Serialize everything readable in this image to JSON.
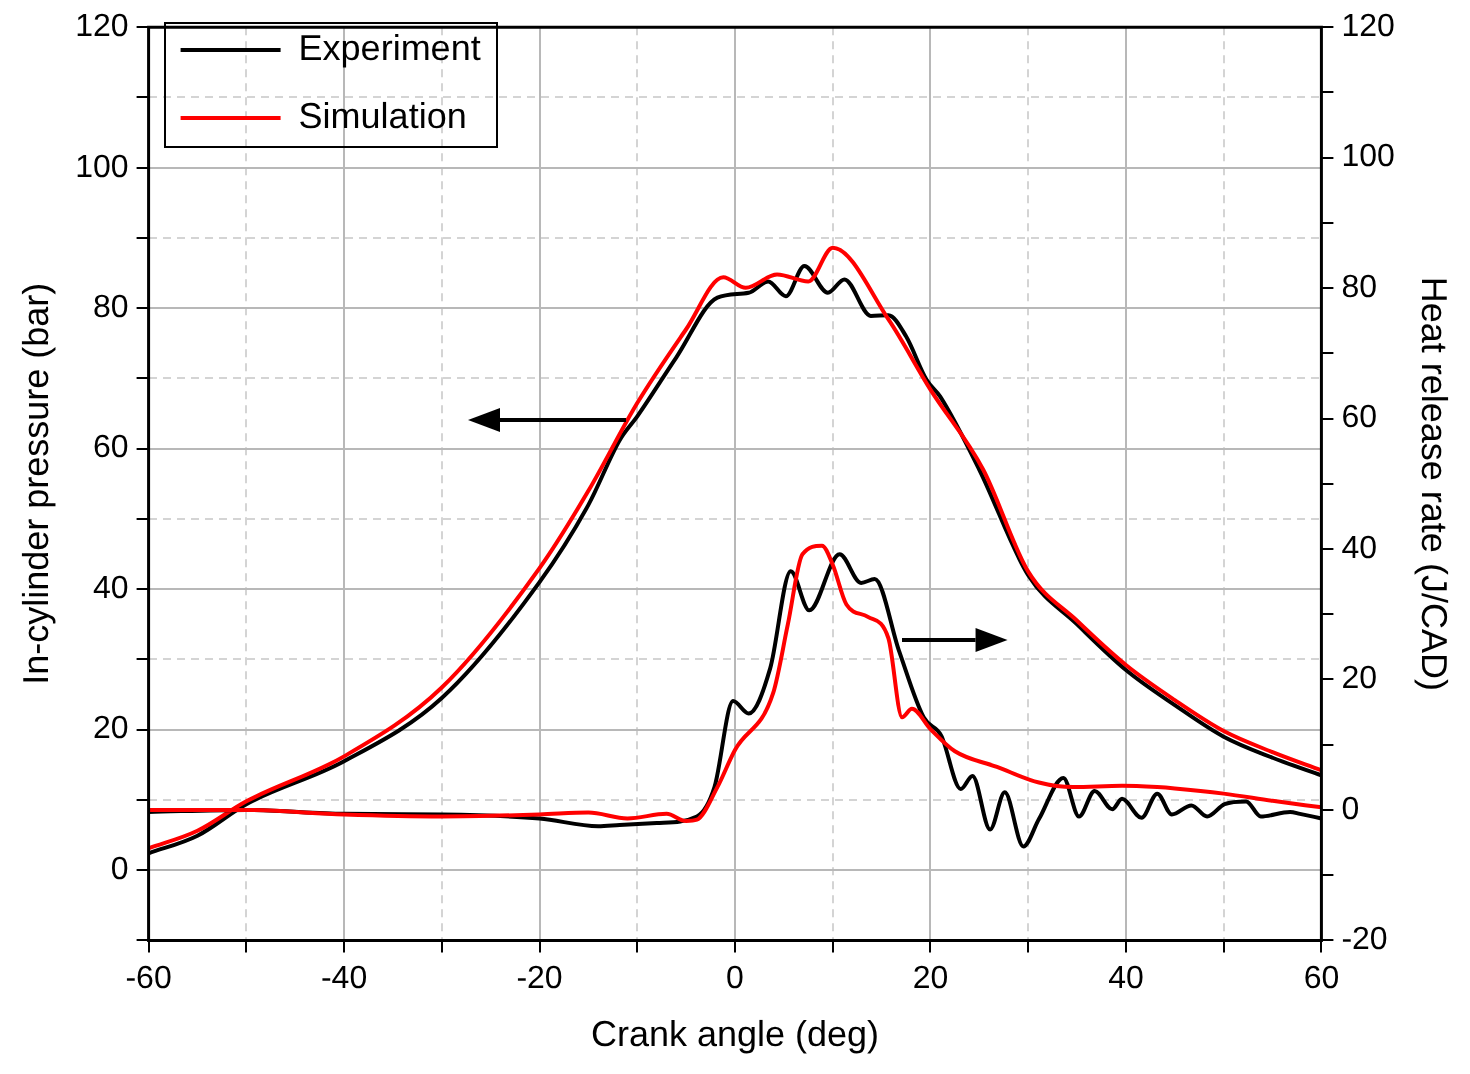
{
  "chart_data": {
    "type": "line",
    "xlabel": "Crank angle (deg)",
    "ylabel": "In-cylinder pressure (bar)",
    "y2label": "Heat release rate (J/CAD)",
    "xlim": [
      -60,
      60
    ],
    "xticks": [
      -60,
      {
        "value": -50,
        "label": null
      },
      -40,
      {
        "value": -30,
        "label": null
      },
      -20,
      {
        "value": -10,
        "label": null
      },
      0,
      {
        "value": 10,
        "label": null
      },
      20,
      {
        "value": 30,
        "label": null
      },
      40,
      {
        "value": 50,
        "label": null
      },
      60
    ],
    "ylim": [
      -10,
      120
    ],
    "yticks": [
      {
        "value": -10,
        "label": null
      },
      0,
      {
        "value": 10,
        "label": null
      },
      20,
      {
        "value": 30,
        "label": null
      },
      40,
      {
        "value": 50,
        "label": null
      },
      60,
      {
        "value": 70,
        "label": null
      },
      80,
      {
        "value": 90,
        "label": null
      },
      100,
      {
        "value": 110,
        "label": null
      },
      120
    ],
    "y2lim": [
      -20,
      120
    ],
    "y2ticks": [
      -20,
      {
        "value": -10,
        "label": null
      },
      0,
      {
        "value": 10,
        "label": null
      },
      20,
      {
        "value": 30,
        "label": null
      },
      40,
      {
        "value": 50,
        "label": null
      },
      60,
      {
        "value": 70,
        "label": null
      },
      80,
      {
        "value": 90,
        "label": null
      },
      100,
      {
        "value": 110,
        "label": null
      },
      120
    ],
    "grid": true,
    "legend": "top left",
    "marker": "none",
    "line_style": "solid",
    "series": [
      {
        "name": "Experiment",
        "color": "#000000",
        "x": [
          -60,
          -55,
          -50,
          -40,
          -30,
          -20,
          -15,
          -11.8,
          -10,
          -6,
          -1.8,
          1.4,
          3.4,
          5.2,
          7.1,
          9.5,
          11.2,
          13.9,
          15.7,
          17.5,
          19.6,
          21,
          25,
          30,
          35,
          40,
          45,
          50,
          55,
          60
        ],
        "values": [
          2.4,
          4.9,
          9.4,
          15.5,
          24.5,
          41,
          52,
          61.2,
          64.6,
          73,
          81.5,
          82.2,
          83.8,
          81.7,
          86,
          82.2,
          84.1,
          78.9,
          79,
          76,
          69.8,
          67.4,
          57,
          42,
          35,
          28.5,
          23.5,
          19,
          16,
          13.5
        ]
      },
      {
        "name": "Simulation",
        "color": "#ff0000",
        "x": [
          -60,
          -55,
          -50,
          -40,
          -30,
          -20,
          -15,
          -10,
          -5,
          -1.2,
          1.1,
          4.3,
          7.5,
          10,
          15.7,
          20,
          25.4,
          30,
          35,
          40,
          45,
          50,
          55,
          60
        ],
        "values": [
          3.1,
          5.6,
          9.8,
          16.2,
          26,
          43,
          54,
          66.5,
          77,
          84.4,
          82.9,
          84.8,
          83.8,
          88.6,
          78.4,
          68.4,
          57,
          42.5,
          35.5,
          29.2,
          24.2,
          19.8,
          16.8,
          14.2
        ]
      },
      {
        "color": "#000000",
        "axis": "y2",
        "x": [
          -60,
          -50,
          -40,
          -30,
          -20,
          -14,
          -11.8,
          -8,
          -3.9,
          -2.1,
          -0.2,
          1.4,
          3.6,
          5.7,
          7.6,
          10.7,
          12.9,
          14.3,
          16.8,
          19.3,
          21.1,
          23.1,
          24.3,
          26.1,
          27.6,
          29.5,
          31.1,
          33.6,
          35.2,
          36.8,
          38.6,
          39.6,
          41.6,
          43.2,
          44.7,
          46.7,
          48.3,
          50.1,
          52.3,
          53.8,
          56.8,
          57.8,
          60
        ],
        "values": [
          -0.3,
          0,
          -0.6,
          -0.7,
          -1.3,
          -2.5,
          -2.3,
          -2,
          -1,
          3.5,
          16.7,
          14.8,
          21.7,
          36.6,
          30.6,
          39.2,
          34.8,
          35.4,
          24.3,
          14.2,
          11.4,
          3.2,
          5.2,
          -3,
          2.7,
          -5.6,
          -1.4,
          4.9,
          -1,
          2.9,
          0.1,
          1.7,
          -1.2,
          2.5,
          -0.7,
          0.7,
          -1,
          0.9,
          1.3,
          -1,
          -0.3,
          -0.6,
          -1.3
        ]
      },
      {
        "color": "#ff0000",
        "axis": "y2",
        "x": [
          -60,
          -50,
          -40,
          -30,
          -20,
          -15,
          -11,
          -7,
          -5,
          -3.9,
          -1.8,
          0,
          3.9,
          5.4,
          6.9,
          8.9,
          10,
          11.4,
          13.6,
          15.7,
          17.1,
          18.1,
          20,
          22.5,
          26.8,
          31.1,
          34.6,
          39.6,
          43.2,
          45,
          50,
          55,
          60
        ],
        "values": [
          0,
          0,
          -0.7,
          -1,
          -0.7,
          -0.4,
          -1.3,
          -0.6,
          -1.7,
          -1.5,
          3.5,
          9.2,
          17.9,
          28.4,
          39.2,
          40.5,
          37.6,
          31.5,
          29.6,
          26.3,
          14.2,
          15.5,
          12.4,
          9,
          6.6,
          4.2,
          3.5,
          3.7,
          3.5,
          3.3,
          2.5,
          1.4,
          0.4
        ]
      }
    ]
  }
}
